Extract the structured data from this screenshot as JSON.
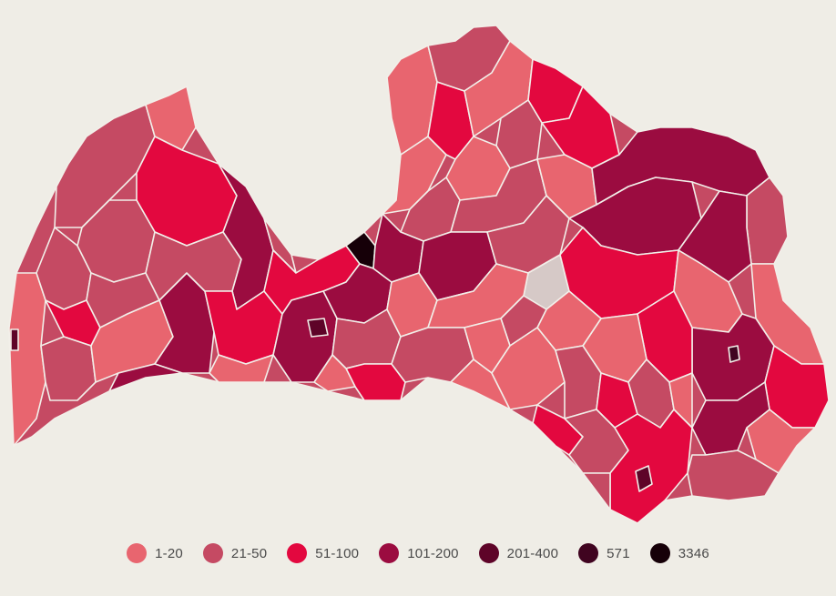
{
  "legend": {
    "items": [
      {
        "label": "1-20",
        "color": "#e8656f"
      },
      {
        "label": "21-50",
        "color": "#c54a63"
      },
      {
        "label": "51-100",
        "color": "#e3083f"
      },
      {
        "label": "101-200",
        "color": "#9b0c40"
      },
      {
        "label": "201-400",
        "color": "#5e0428"
      },
      {
        "label": "571",
        "color": "#400420"
      },
      {
        "label": "3346",
        "color": "#160008"
      }
    ]
  },
  "colors": {
    "background": "#efede6",
    "no_data": "#d6c9c7",
    "border": "#f2efe9"
  }
}
